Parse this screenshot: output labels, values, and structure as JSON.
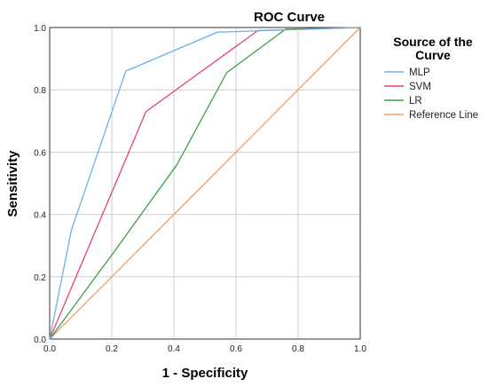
{
  "chart_data": {
    "type": "line",
    "title": "ROC Curve",
    "xlabel": "1 - Specificity",
    "ylabel": "Sensitivity",
    "xlim": [
      0,
      1
    ],
    "ylim": [
      0,
      1
    ],
    "xticks": [
      "0.0",
      "0.2",
      "0.4",
      "0.6",
      "0.8",
      "1.0"
    ],
    "yticks": [
      "0.0",
      "0.2",
      "0.4",
      "0.6",
      "0.8",
      "1.0"
    ],
    "grid": true,
    "legend": {
      "title_line1": "Source of the",
      "title_line2": "Curve",
      "placement": "right"
    },
    "series": [
      {
        "name": "MLP",
        "color": "#6fb0e3",
        "points": [
          [
            0,
            0
          ],
          [
            0.07,
            0.35
          ],
          [
            0.245,
            0.86
          ],
          [
            0.54,
            0.985
          ],
          [
            1.0,
            1.0
          ]
        ]
      },
      {
        "name": "SVM",
        "color": "#e8436b",
        "points": [
          [
            0,
            0
          ],
          [
            0.31,
            0.73
          ],
          [
            0.67,
            0.99
          ],
          [
            1.0,
            1.0
          ]
        ]
      },
      {
        "name": "LR",
        "color": "#3aa04a",
        "points": [
          [
            0,
            0
          ],
          [
            0.2,
            0.27
          ],
          [
            0.41,
            0.56
          ],
          [
            0.57,
            0.855
          ],
          [
            0.76,
            0.995
          ],
          [
            1.0,
            1.0
          ]
        ]
      },
      {
        "name": "Reference Line",
        "color": "#f0a06e",
        "points": [
          [
            0,
            0
          ],
          [
            1.0,
            1.0
          ]
        ]
      }
    ]
  }
}
